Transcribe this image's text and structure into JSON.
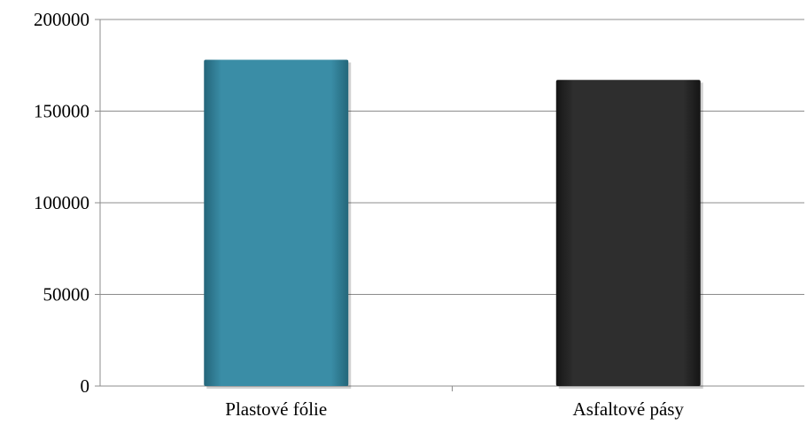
{
  "chart_data": {
    "type": "bar",
    "title": "",
    "xlabel": "",
    "ylabel": "",
    "categories": [
      "Plastové fólie",
      "Asfaltové pásy"
    ],
    "values": [
      178000,
      167000
    ],
    "ylim": [
      0,
      200000
    ],
    "yticks": [
      "0",
      "50000",
      "100000",
      "150000",
      "200000"
    ],
    "grid": true,
    "legend": "none",
    "bar_colors": [
      "#3a8da6",
      "#2e2e2e"
    ]
  }
}
